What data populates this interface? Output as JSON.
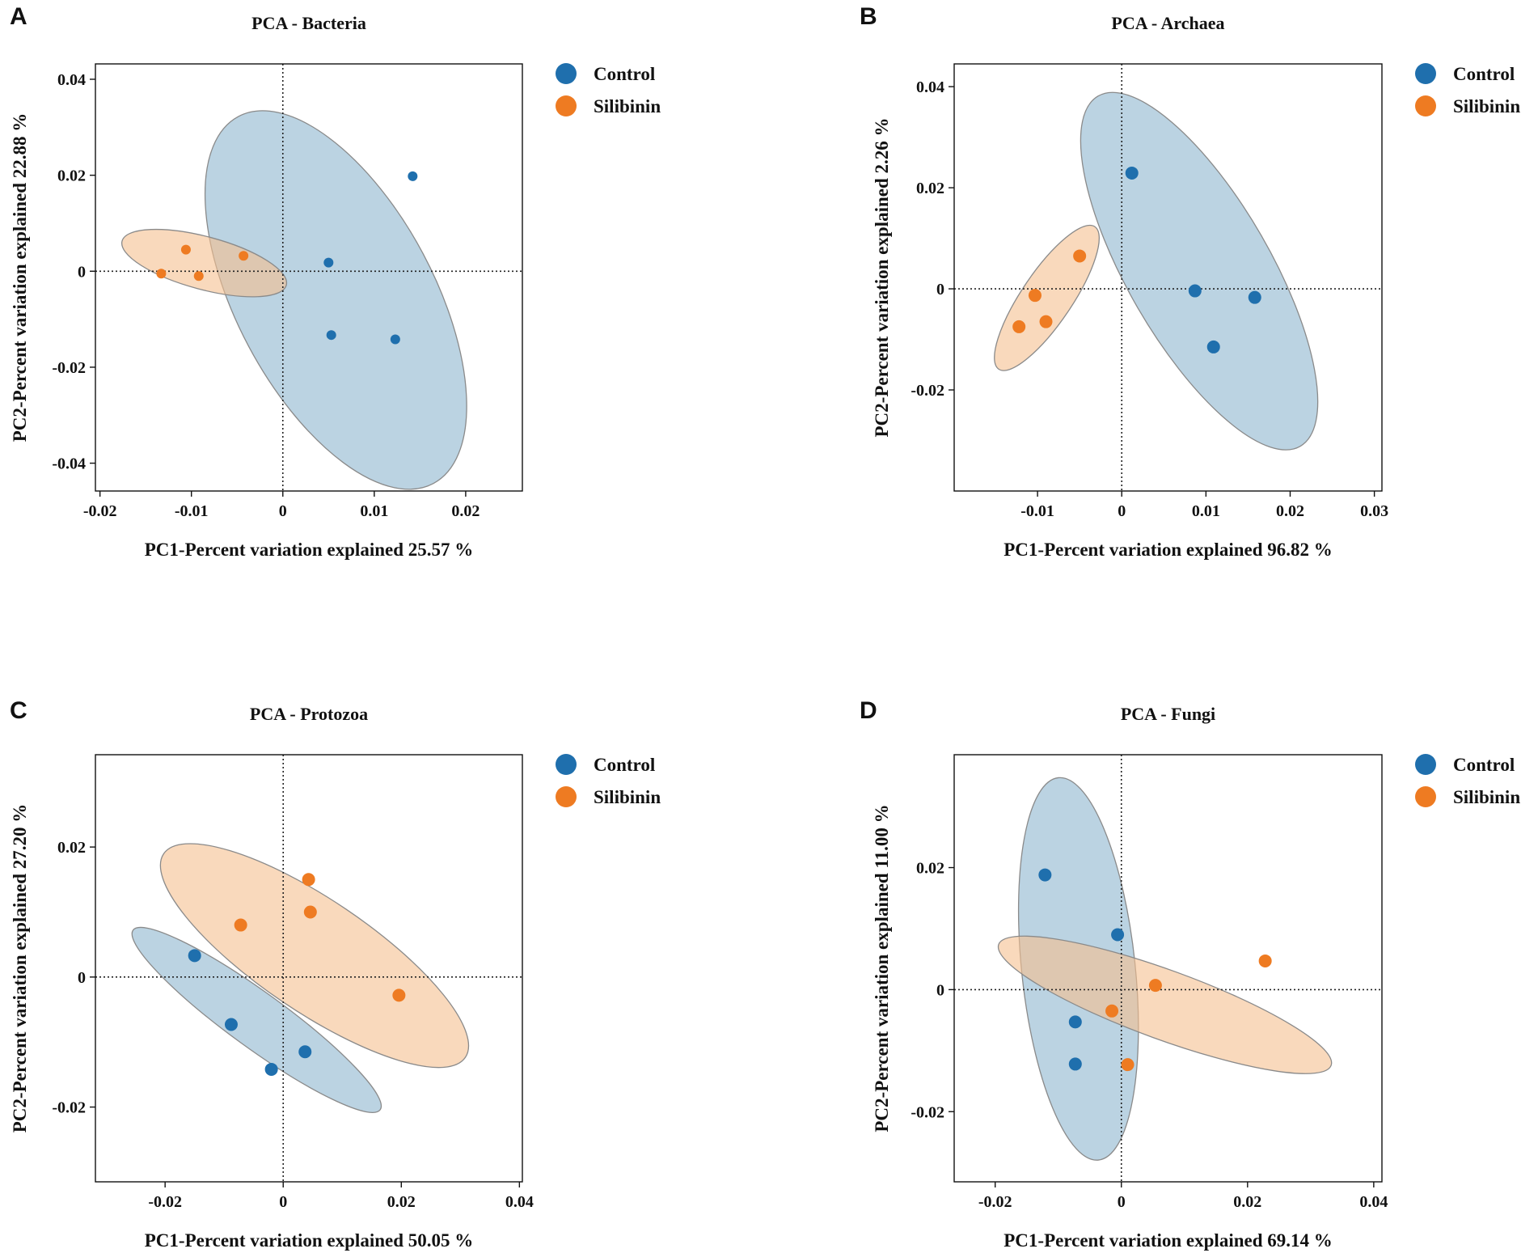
{
  "colors": {
    "control": "#1f6fad",
    "silibinin": "#ee7b22",
    "control_ellipse": "#8db5cf",
    "silibinin_ellipse": "#f5c08f"
  },
  "legend": [
    "Control",
    "Silibinin"
  ],
  "chart_data": [
    {
      "type": "scatter",
      "panel": "A",
      "title": "PCA - Bacteria",
      "xlabel": "PC1-Percent variation explained 25.57 %",
      "ylabel": "PC2-Percent variation explained  22.88 %",
      "xlim": [
        -0.0205,
        0.0262
      ],
      "ylim": [
        -0.0458,
        0.0432
      ],
      "xticks": [
        -0.02,
        -0.01,
        0,
        0.01,
        0.02
      ],
      "xtick_labels": [
        "-0.02",
        "-0.01",
        "0",
        "0.01",
        "0.02"
      ],
      "yticks": [
        -0.04,
        -0.02,
        0,
        0.02,
        0.04
      ],
      "ytick_labels": [
        "-0.04",
        "-0.02",
        "0",
        "0.02",
        "0.04"
      ],
      "series": [
        {
          "name": "Control",
          "x": [
            0.0142,
            0.005,
            0.0053,
            0.0123
          ],
          "y": [
            0.0198,
            0.0018,
            -0.0133,
            -0.0142
          ]
        },
        {
          "name": "Silibinin",
          "x": [
            -0.0106,
            -0.0043,
            -0.0133,
            -0.0092
          ],
          "y": [
            0.0045,
            0.0032,
            -0.0005,
            -0.001
          ]
        }
      ],
      "ellipses": [
        {
          "group": "Control",
          "center": [
            0.0058,
            -0.006
          ],
          "semi_axes": [
            0.0108,
            0.0433
          ],
          "angle_deg": -28
        },
        {
          "group": "Silibinin",
          "center": [
            -0.0086,
            0.0017
          ],
          "semi_axes": [
            0.0093,
            0.0055
          ],
          "angle_deg": 15
        }
      ]
    },
    {
      "type": "scatter",
      "panel": "B",
      "title": "PCA - Archaea",
      "xlabel": "PC1-Percent variation explained 96.82 %",
      "ylabel": "PC2-Percent variation explained  2.26 %",
      "xlim": [
        -0.0199,
        0.0309
      ],
      "ylim": [
        -0.04,
        0.0445
      ],
      "xticks": [
        -0.01,
        0,
        0.01,
        0.02,
        0.03
      ],
      "xtick_labels": [
        "-0.01",
        "0",
        "0.01",
        "0.02",
        "0.03"
      ],
      "yticks": [
        -0.02,
        0,
        0.02,
        0.04
      ],
      "ytick_labels": [
        "-0.02",
        "0",
        "0.02",
        "0.04"
      ],
      "series": [
        {
          "name": "Control",
          "x": [
            0.0012,
            0.0087,
            0.0158,
            0.0109
          ],
          "y": [
            0.0229,
            -0.0004,
            -0.0017,
            -0.0115
          ]
        },
        {
          "name": "Silibinin",
          "x": [
            -0.005,
            -0.0103,
            -0.0122,
            -0.009
          ],
          "y": [
            0.0065,
            -0.0013,
            -0.0075,
            -0.0065
          ]
        }
      ],
      "ellipses": [
        {
          "group": "Control",
          "center": [
            0.0092,
            0.0035
          ],
          "semi_axes": [
            0.0085,
            0.04
          ],
          "angle_deg": -30
        },
        {
          "group": "Silibinin",
          "center": [
            -0.0089,
            -0.0018
          ],
          "semi_axes": [
            0.003,
            0.017
          ],
          "angle_deg": 34
        }
      ]
    },
    {
      "type": "scatter",
      "panel": "C",
      "title": "PCA - Protozoa",
      "xlabel": "PC1-Percent variation explained 50.05 %",
      "ylabel": "PC2-Percent variation explained  27.20 %",
      "xlim": [
        -0.0318,
        0.0405
      ],
      "ylim": [
        -0.0315,
        0.0342
      ],
      "xticks": [
        -0.02,
        0,
        0.02,
        0.04
      ],
      "xtick_labels": [
        "-0.02",
        "0",
        "0.02",
        "0.04"
      ],
      "yticks": [
        -0.02,
        0,
        0.02
      ],
      "ytick_labels": [
        "-0.02",
        "0",
        "0.02"
      ],
      "series": [
        {
          "name": "Control",
          "x": [
            -0.015,
            -0.0088,
            0.0037,
            -0.002
          ],
          "y": [
            0.0033,
            -0.0073,
            -0.0115,
            -0.0142
          ]
        },
        {
          "name": "Silibinin",
          "x": [
            0.0043,
            0.0046,
            -0.0072,
            0.0196
          ],
          "y": [
            0.015,
            0.01,
            0.008,
            -0.0028
          ]
        }
      ],
      "ellipses": [
        {
          "group": "Control",
          "center": [
            -0.0045,
            -0.0066
          ],
          "semi_axes": [
            0.0047,
            0.0235
          ],
          "angle_deg": -54
        },
        {
          "group": "Silibinin",
          "center": [
            0.0053,
            0.0033
          ],
          "semi_axes": [
            0.0095,
            0.028
          ],
          "angle_deg": -56
        }
      ]
    },
    {
      "type": "scatter",
      "panel": "D",
      "title": "PCA - Fungi",
      "xlabel": "PC1-Percent variation explained 69.14 %",
      "ylabel": "PC2-Percent variation explained  11.00 %",
      "xlim": [
        -0.0265,
        0.0413
      ],
      "ylim": [
        -0.0315,
        0.0385
      ],
      "xticks": [
        -0.02,
        0,
        0.02,
        0.04
      ],
      "xtick_labels": [
        "-0.02",
        "0",
        "0.02",
        "0.04"
      ],
      "yticks": [
        -0.02,
        0,
        0.02
      ],
      "ytick_labels": [
        "-0.02",
        "0",
        "0.02"
      ],
      "series": [
        {
          "name": "Control",
          "x": [
            -0.0121,
            -0.0006,
            -0.0073,
            -0.0073
          ],
          "y": [
            0.0188,
            0.009,
            -0.0053,
            -0.0122
          ]
        },
        {
          "name": "Silibinin",
          "x": [
            0.0228,
            0.0054,
            -0.0015,
            0.001
          ],
          "y": [
            0.0047,
            0.0007,
            -0.0035,
            -0.0123
          ]
        }
      ],
      "ellipses": [
        {
          "group": "Control",
          "center": [
            -0.0068,
            0.0034
          ],
          "semi_axes": [
            0.009,
            0.0315
          ],
          "angle_deg": -6
        },
        {
          "group": "Silibinin",
          "center": [
            0.0069,
            -0.0025
          ],
          "semi_axes": [
            0.0055,
            0.029
          ],
          "angle_deg": -70
        }
      ]
    }
  ]
}
